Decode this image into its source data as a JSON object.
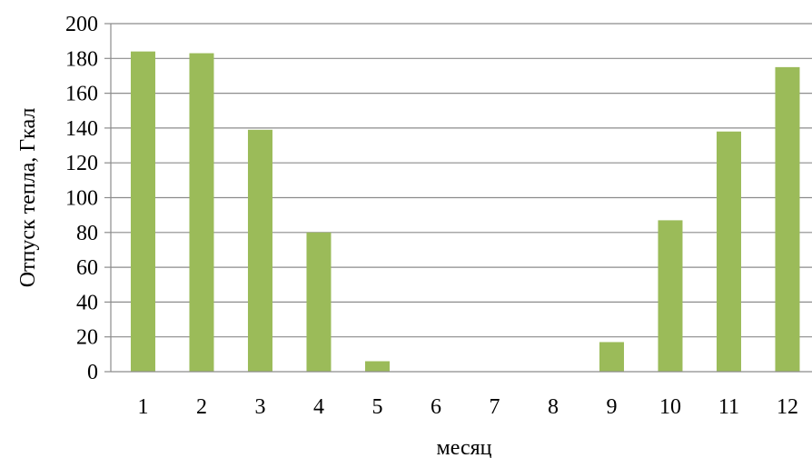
{
  "chart_data": {
    "type": "bar",
    "title": "",
    "xlabel": "месяц",
    "ylabel": "Отпуск тепла, Гкал",
    "categories": [
      "1",
      "2",
      "3",
      "4",
      "5",
      "6",
      "7",
      "8",
      "9",
      "10",
      "11",
      "12"
    ],
    "values": [
      184,
      183,
      139,
      80,
      6,
      0,
      0,
      0,
      17,
      87,
      138,
      175
    ],
    "ylim": [
      0,
      200
    ],
    "yticks": [
      0,
      20,
      40,
      60,
      80,
      100,
      120,
      140,
      160,
      180,
      200
    ],
    "grid": true,
    "legend": "none",
    "colors": {
      "bar": "#9bbb59",
      "grid": "#8c8c8c",
      "axis": "#8c8c8c",
      "text": "#000000"
    }
  }
}
